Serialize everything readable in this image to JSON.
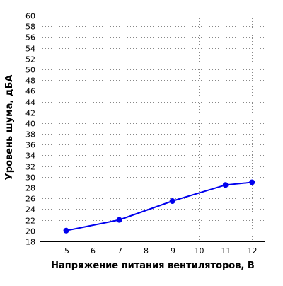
{
  "chart_data": {
    "type": "line",
    "title": "",
    "xlabel": "Напряжение питания вентиляторов, В",
    "ylabel": "Уровень шума, дБА",
    "x_ticks": [
      5,
      6,
      7,
      8,
      9,
      10,
      11,
      12
    ],
    "y_ticks": [
      18,
      20,
      22,
      24,
      26,
      28,
      30,
      32,
      34,
      36,
      38,
      40,
      42,
      44,
      46,
      48,
      50,
      52,
      54,
      56,
      58,
      60
    ],
    "xlim": [
      4,
      12.5
    ],
    "ylim": [
      18,
      60
    ],
    "grid": true,
    "series": [
      {
        "x": [
          5,
          7,
          9,
          11,
          12
        ],
        "y": [
          20,
          22,
          25.5,
          28.5,
          29
        ],
        "color": "#0000ee"
      }
    ],
    "colors": {
      "grid": "#888888",
      "axis": "#000000",
      "line": "#0000ee"
    }
  }
}
